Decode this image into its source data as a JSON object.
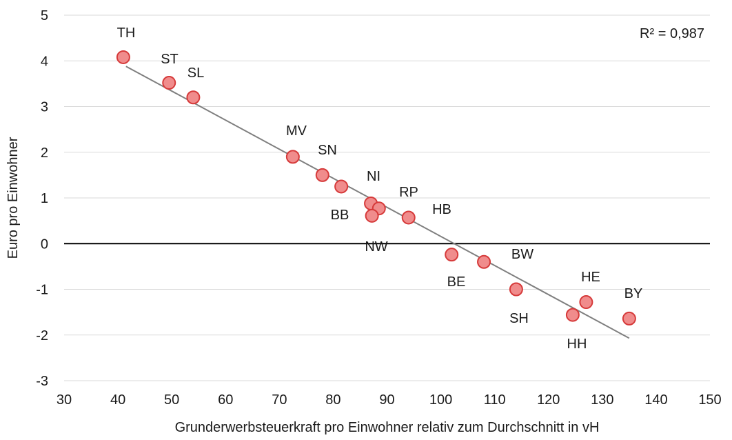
{
  "chart_data": {
    "type": "scatter",
    "title": "",
    "xlabel": "Grunderwerbsteuerkraft pro Einwohner relativ zum Durchschnitt in vH",
    "ylabel": "Euro pro Einwohner",
    "xlim": [
      30,
      150
    ],
    "ylim": [
      -3,
      5
    ],
    "xticks": [
      30,
      40,
      50,
      60,
      70,
      80,
      90,
      100,
      110,
      120,
      130,
      140,
      150
    ],
    "yticks": [
      -3,
      -2,
      -1,
      0,
      1,
      2,
      3,
      4,
      5
    ],
    "grid": true,
    "legend": "none",
    "annotation": "R² = 0,987",
    "points": [
      {
        "label": "TH",
        "x": 41,
        "y": 4.08
      },
      {
        "label": "ST",
        "x": 49.5,
        "y": 3.52
      },
      {
        "label": "SL",
        "x": 54,
        "y": 3.2
      },
      {
        "label": "MV",
        "x": 72.5,
        "y": 1.9
      },
      {
        "label": "SN",
        "x": 78,
        "y": 1.5
      },
      {
        "label": "",
        "x": 81.5,
        "y": 1.25
      },
      {
        "label": "NI",
        "x": 87,
        "y": 0.88
      },
      {
        "label": "",
        "x": 88.5,
        "y": 0.77
      },
      {
        "label": "BB",
        "x": 87.2,
        "y": 0.61
      },
      {
        "label": "RP",
        "x": 94,
        "y": 0.57
      },
      {
        "label": "BE",
        "x": 102,
        "y": -0.24
      },
      {
        "label": "BW",
        "x": 108,
        "y": -0.4
      },
      {
        "label": "SH",
        "x": 114,
        "y": -1.0
      },
      {
        "label": "HH",
        "x": 124.5,
        "y": -1.56
      },
      {
        "label": "HE",
        "x": 127,
        "y": -1.28
      },
      {
        "label": "BY",
        "x": 135,
        "y": -1.64
      }
    ],
    "extra_labels": [
      "HB",
      "NW"
    ],
    "trendline": {
      "x": [
        41.5,
        135
      ],
      "y": [
        3.88,
        -2.07
      ]
    },
    "colors": {
      "marker_fill": "#f08c8c",
      "marker_stroke": "#d63a3a",
      "trendline": "#7f7f7f",
      "zero_line": "#000000",
      "grid": "#d9d9d9"
    }
  }
}
